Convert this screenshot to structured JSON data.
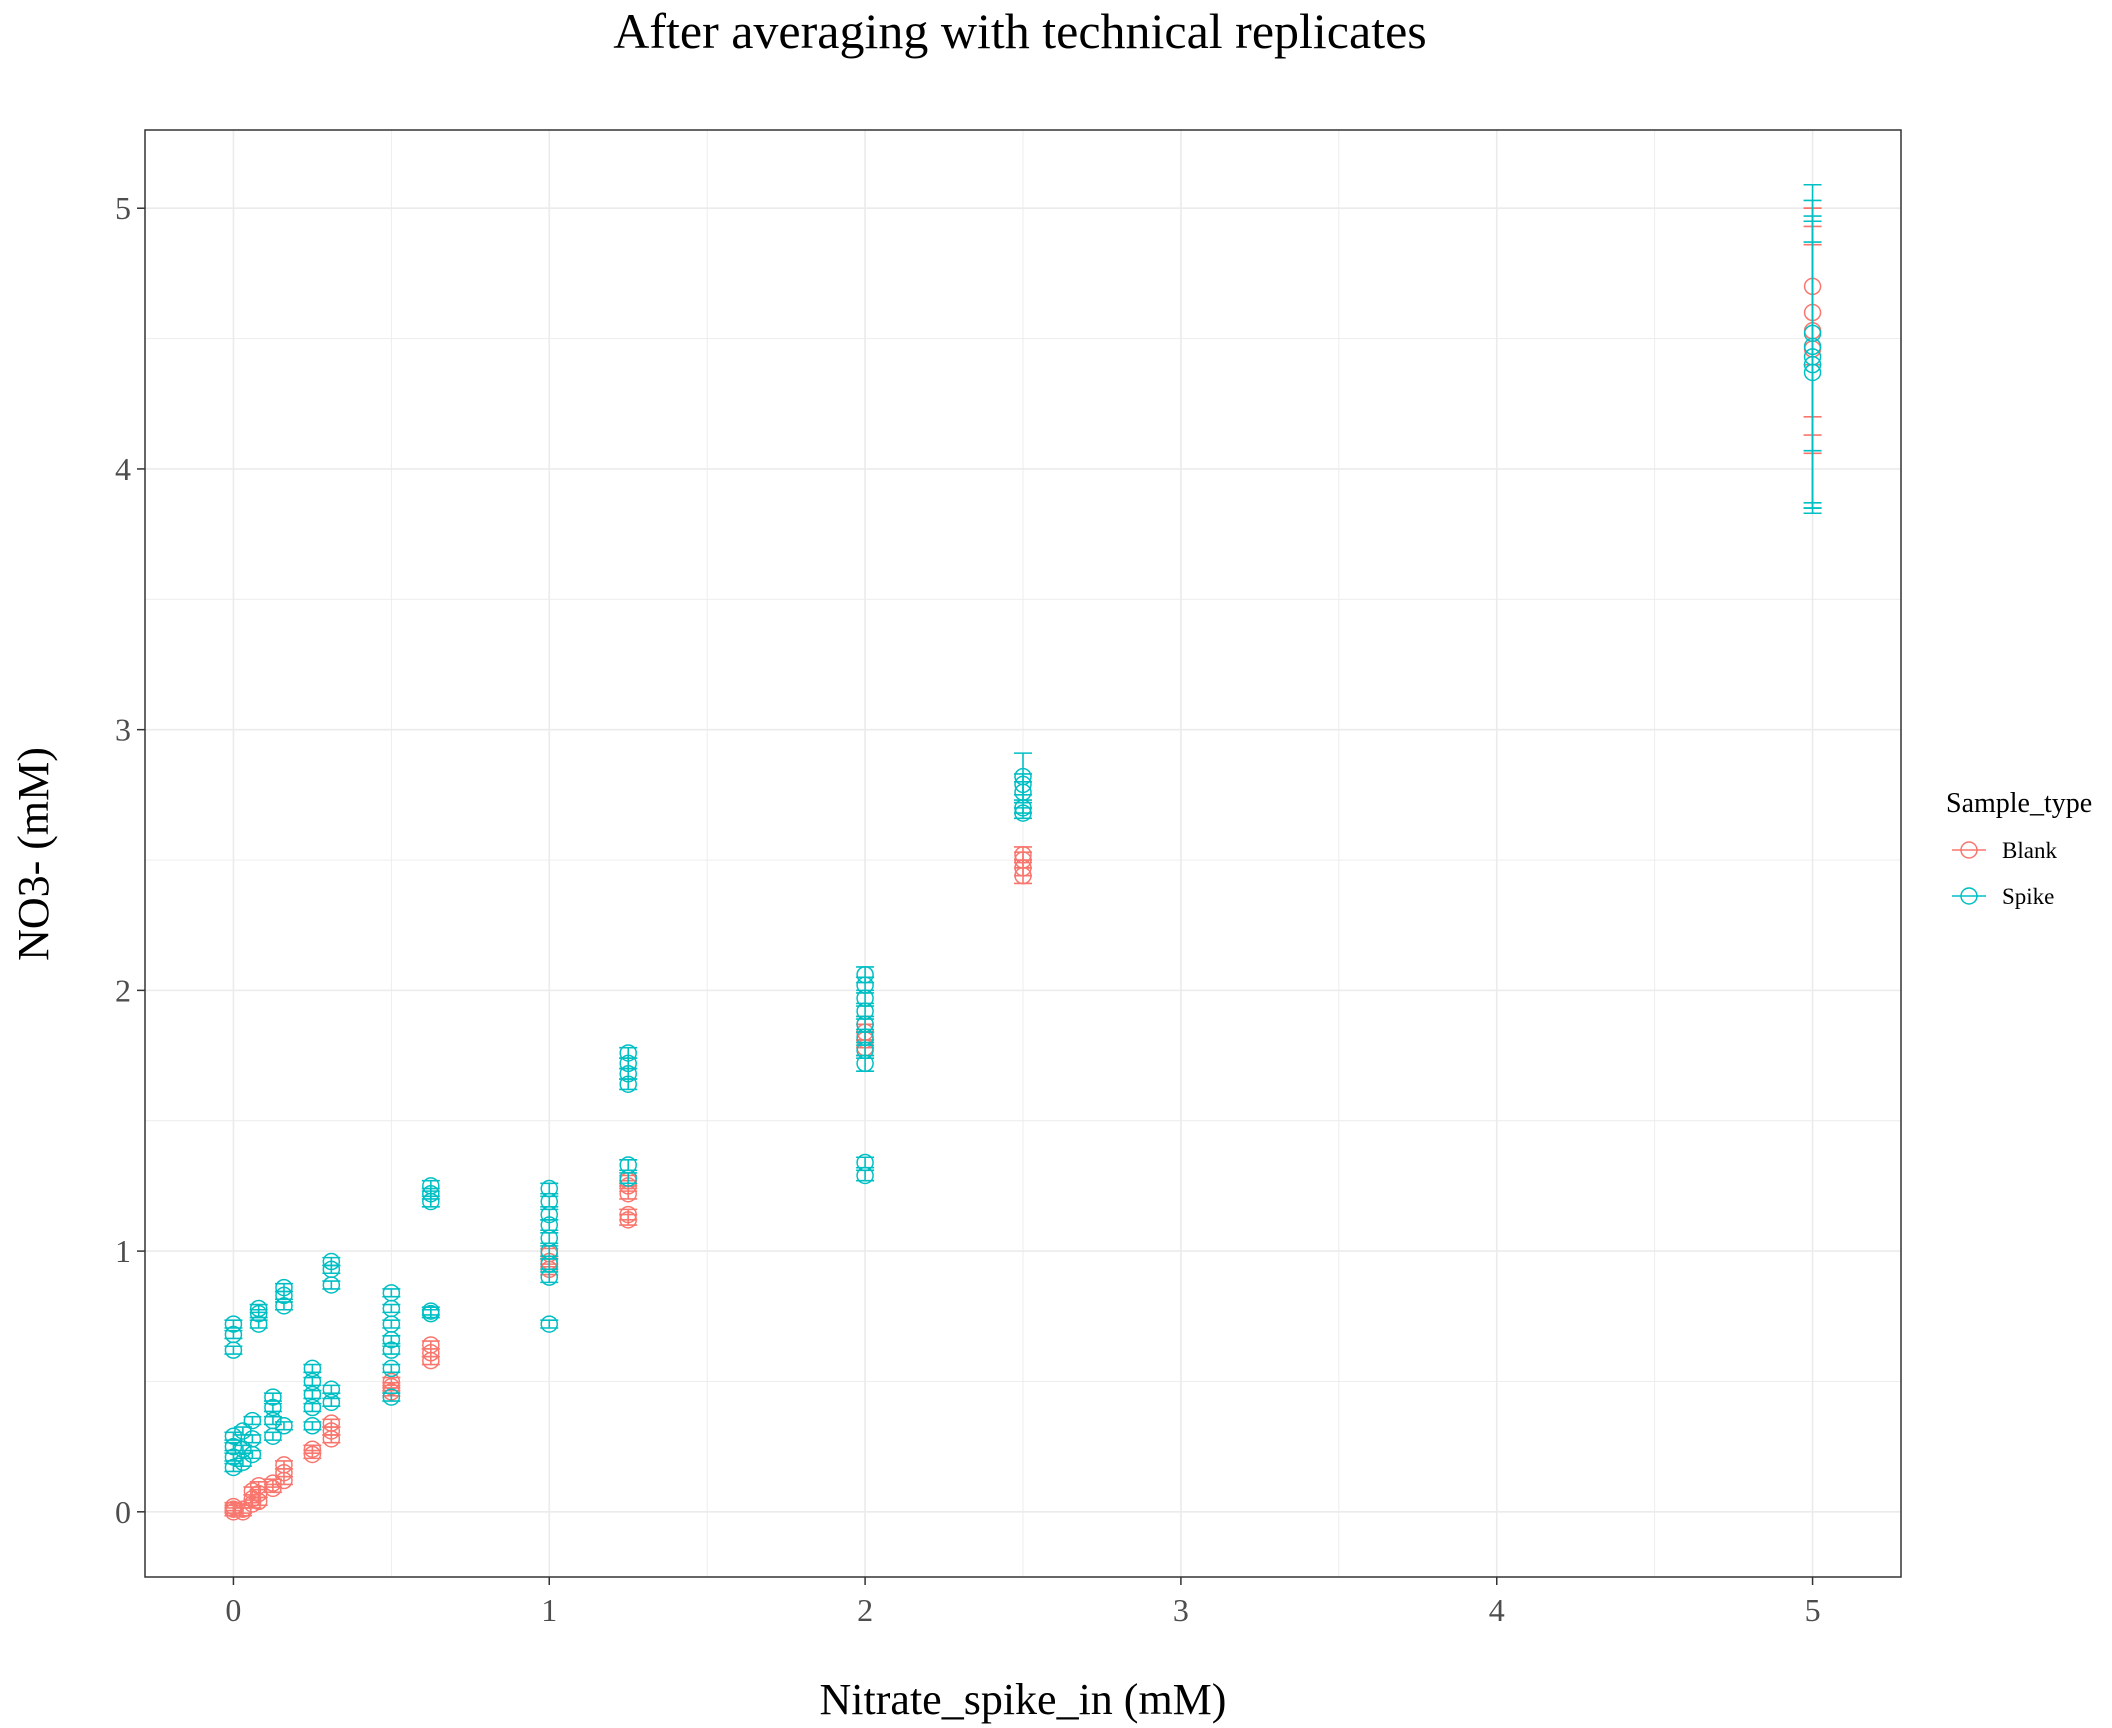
{
  "chart_data": {
    "type": "scatter",
    "title": "After averaging with technical replicates",
    "xlabel": "Nitrate_spike_in (mM)",
    "ylabel": "NO3- (mM)",
    "xlim": [
      -0.28,
      5.28
    ],
    "ylim": [
      -0.25,
      5.3
    ],
    "x_ticks": [
      0,
      1,
      2,
      3,
      4,
      5
    ],
    "y_ticks": [
      0,
      1,
      2,
      3,
      4,
      5
    ],
    "grid": true,
    "legend": {
      "title": "Sample_type",
      "position": "right"
    },
    "marker": "open-circle-with-errorbars",
    "series": [
      {
        "name": "Blank",
        "color": "#F8766D",
        "points": [
          {
            "x": 0,
            "y": 0.0,
            "err": 0.015
          },
          {
            "x": 0,
            "y": 0.01,
            "err": 0.015
          },
          {
            "x": 0,
            "y": 0.02,
            "err": 0.015
          },
          {
            "x": 0.03,
            "y": 0.0,
            "err": 0.015
          },
          {
            "x": 0.03,
            "y": 0.01,
            "err": 0.015
          },
          {
            "x": 0.06,
            "y": 0.03,
            "err": 0.015
          },
          {
            "x": 0.06,
            "y": 0.05,
            "err": 0.015
          },
          {
            "x": 0.06,
            "y": 0.08,
            "err": 0.015
          },
          {
            "x": 0.08,
            "y": 0.04,
            "err": 0.015
          },
          {
            "x": 0.08,
            "y": 0.07,
            "err": 0.015
          },
          {
            "x": 0.08,
            "y": 0.1,
            "err": 0.015
          },
          {
            "x": 0.125,
            "y": 0.09,
            "err": 0.015
          },
          {
            "x": 0.125,
            "y": 0.11,
            "err": 0.015
          },
          {
            "x": 0.16,
            "y": 0.12,
            "err": 0.015
          },
          {
            "x": 0.16,
            "y": 0.15,
            "err": 0.015
          },
          {
            "x": 0.16,
            "y": 0.18,
            "err": 0.015
          },
          {
            "x": 0.25,
            "y": 0.22,
            "err": 0.015
          },
          {
            "x": 0.25,
            "y": 0.24,
            "err": 0.015
          },
          {
            "x": 0.31,
            "y": 0.28,
            "err": 0.015
          },
          {
            "x": 0.31,
            "y": 0.31,
            "err": 0.015
          },
          {
            "x": 0.31,
            "y": 0.34,
            "err": 0.015
          },
          {
            "x": 0.5,
            "y": 0.46,
            "err": 0.015
          },
          {
            "x": 0.5,
            "y": 0.48,
            "err": 0.015
          },
          {
            "x": 0.5,
            "y": 0.5,
            "err": 0.015
          },
          {
            "x": 0.625,
            "y": 0.58,
            "err": 0.015
          },
          {
            "x": 0.625,
            "y": 0.61,
            "err": 0.015
          },
          {
            "x": 0.625,
            "y": 0.64,
            "err": 0.015
          },
          {
            "x": 1,
            "y": 0.93,
            "err": 0.02
          },
          {
            "x": 1,
            "y": 0.96,
            "err": 0.02
          },
          {
            "x": 1,
            "y": 0.99,
            "err": 0.02
          },
          {
            "x": 1.25,
            "y": 1.12,
            "err": 0.02
          },
          {
            "x": 1.25,
            "y": 1.14,
            "err": 0.02
          },
          {
            "x": 1.25,
            "y": 1.22,
            "err": 0.02
          },
          {
            "x": 1.25,
            "y": 1.25,
            "err": 0.02
          },
          {
            "x": 1.25,
            "y": 1.27,
            "err": 0.02
          },
          {
            "x": 2,
            "y": 1.78,
            "err": 0.03
          },
          {
            "x": 2,
            "y": 1.81,
            "err": 0.03
          },
          {
            "x": 2,
            "y": 1.84,
            "err": 0.03
          },
          {
            "x": 2,
            "y": 1.87,
            "err": 0.03
          },
          {
            "x": 2.5,
            "y": 2.44,
            "err": 0.03
          },
          {
            "x": 2.5,
            "y": 2.47,
            "err": 0.03
          },
          {
            "x": 2.5,
            "y": 2.5,
            "err": 0.03
          },
          {
            "x": 2.5,
            "y": 2.52,
            "err": 0.03
          },
          {
            "x": 5,
            "y": 4.46,
            "err": 0.4
          },
          {
            "x": 5,
            "y": 4.53,
            "err": 0.4
          },
          {
            "x": 5,
            "y": 4.6,
            "err": 0.4
          },
          {
            "x": 5,
            "y": 4.7,
            "err": 0.3
          }
        ]
      },
      {
        "name": "Spike",
        "color": "#00BFC4",
        "points": [
          {
            "x": 0,
            "y": 0.17,
            "err": 0.015
          },
          {
            "x": 0,
            "y": 0.21,
            "err": 0.015
          },
          {
            "x": 0,
            "y": 0.25,
            "err": 0.015
          },
          {
            "x": 0,
            "y": 0.29,
            "err": 0.015
          },
          {
            "x": 0,
            "y": 0.62,
            "err": 0.015
          },
          {
            "x": 0,
            "y": 0.68,
            "err": 0.015
          },
          {
            "x": 0,
            "y": 0.72,
            "err": 0.015
          },
          {
            "x": 0.03,
            "y": 0.19,
            "err": 0.015
          },
          {
            "x": 0.03,
            "y": 0.24,
            "err": 0.015
          },
          {
            "x": 0.03,
            "y": 0.31,
            "err": 0.015
          },
          {
            "x": 0.06,
            "y": 0.22,
            "err": 0.015
          },
          {
            "x": 0.06,
            "y": 0.28,
            "err": 0.015
          },
          {
            "x": 0.06,
            "y": 0.35,
            "err": 0.015
          },
          {
            "x": 0.08,
            "y": 0.72,
            "err": 0.015
          },
          {
            "x": 0.08,
            "y": 0.76,
            "err": 0.015
          },
          {
            "x": 0.08,
            "y": 0.78,
            "err": 0.015
          },
          {
            "x": 0.125,
            "y": 0.29,
            "err": 0.015
          },
          {
            "x": 0.125,
            "y": 0.35,
            "err": 0.015
          },
          {
            "x": 0.125,
            "y": 0.4,
            "err": 0.015
          },
          {
            "x": 0.125,
            "y": 0.44,
            "err": 0.015
          },
          {
            "x": 0.16,
            "y": 0.33,
            "err": 0.015
          },
          {
            "x": 0.16,
            "y": 0.79,
            "err": 0.015
          },
          {
            "x": 0.16,
            "y": 0.83,
            "err": 0.015
          },
          {
            "x": 0.16,
            "y": 0.86,
            "err": 0.015
          },
          {
            "x": 0.25,
            "y": 0.33,
            "err": 0.015
          },
          {
            "x": 0.25,
            "y": 0.4,
            "err": 0.015
          },
          {
            "x": 0.25,
            "y": 0.45,
            "err": 0.015
          },
          {
            "x": 0.25,
            "y": 0.5,
            "err": 0.015
          },
          {
            "x": 0.25,
            "y": 0.55,
            "err": 0.015
          },
          {
            "x": 0.31,
            "y": 0.42,
            "err": 0.015
          },
          {
            "x": 0.31,
            "y": 0.47,
            "err": 0.015
          },
          {
            "x": 0.31,
            "y": 0.87,
            "err": 0.015
          },
          {
            "x": 0.31,
            "y": 0.93,
            "err": 0.015
          },
          {
            "x": 0.31,
            "y": 0.96,
            "err": 0.015
          },
          {
            "x": 0.5,
            "y": 0.44,
            "err": 0.015
          },
          {
            "x": 0.5,
            "y": 0.55,
            "err": 0.015
          },
          {
            "x": 0.5,
            "y": 0.62,
            "err": 0.015
          },
          {
            "x": 0.5,
            "y": 0.66,
            "err": 0.015
          },
          {
            "x": 0.5,
            "y": 0.72,
            "err": 0.015
          },
          {
            "x": 0.5,
            "y": 0.78,
            "err": 0.015
          },
          {
            "x": 0.5,
            "y": 0.84,
            "err": 0.015
          },
          {
            "x": 0.625,
            "y": 0.76,
            "err": 0.015
          },
          {
            "x": 0.625,
            "y": 0.77,
            "err": 0.015
          },
          {
            "x": 0.625,
            "y": 1.19,
            "err": 0.02
          },
          {
            "x": 0.625,
            "y": 1.22,
            "err": 0.02
          },
          {
            "x": 0.625,
            "y": 1.25,
            "err": 0.02
          },
          {
            "x": 1,
            "y": 0.72,
            "err": 0.015
          },
          {
            "x": 1,
            "y": 0.9,
            "err": 0.02
          },
          {
            "x": 1,
            "y": 0.95,
            "err": 0.02
          },
          {
            "x": 1,
            "y": 1.0,
            "err": 0.02
          },
          {
            "x": 1,
            "y": 1.05,
            "err": 0.02
          },
          {
            "x": 1,
            "y": 1.1,
            "err": 0.02
          },
          {
            "x": 1,
            "y": 1.14,
            "err": 0.02
          },
          {
            "x": 1,
            "y": 1.19,
            "err": 0.02
          },
          {
            "x": 1,
            "y": 1.24,
            "err": 0.02
          },
          {
            "x": 1.25,
            "y": 1.28,
            "err": 0.02
          },
          {
            "x": 1.25,
            "y": 1.33,
            "err": 0.02
          },
          {
            "x": 1.25,
            "y": 1.64,
            "err": 0.02
          },
          {
            "x": 1.25,
            "y": 1.68,
            "err": 0.02
          },
          {
            "x": 1.25,
            "y": 1.72,
            "err": 0.02
          },
          {
            "x": 1.25,
            "y": 1.76,
            "err": 0.02
          },
          {
            "x": 2,
            "y": 1.29,
            "err": 0.02
          },
          {
            "x": 2,
            "y": 1.34,
            "err": 0.02
          },
          {
            "x": 2,
            "y": 1.72,
            "err": 0.03
          },
          {
            "x": 2,
            "y": 1.77,
            "err": 0.03
          },
          {
            "x": 2,
            "y": 1.82,
            "err": 0.03
          },
          {
            "x": 2,
            "y": 1.87,
            "err": 0.03
          },
          {
            "x": 2,
            "y": 1.92,
            "err": 0.03
          },
          {
            "x": 2,
            "y": 1.97,
            "err": 0.03
          },
          {
            "x": 2,
            "y": 2.02,
            "err": 0.03
          },
          {
            "x": 2,
            "y": 2.06,
            "err": 0.03
          },
          {
            "x": 2.5,
            "y": 2.68,
            "err": 0.02
          },
          {
            "x": 2.5,
            "y": 2.7,
            "err": 0.02
          },
          {
            "x": 2.5,
            "y": 2.76,
            "err": 0.04
          },
          {
            "x": 2.5,
            "y": 2.79,
            "err": 0.04
          },
          {
            "x": 2.5,
            "y": 2.82,
            "err": 0.09
          },
          {
            "x": 5,
            "y": 4.37,
            "err": 0.5
          },
          {
            "x": 5,
            "y": 4.4,
            "err": 0.55
          },
          {
            "x": 5,
            "y": 4.43,
            "err": 0.6
          },
          {
            "x": 5,
            "y": 4.47,
            "err": 0.62
          },
          {
            "x": 5,
            "y": 4.52,
            "err": 0.45
          }
        ]
      }
    ]
  }
}
